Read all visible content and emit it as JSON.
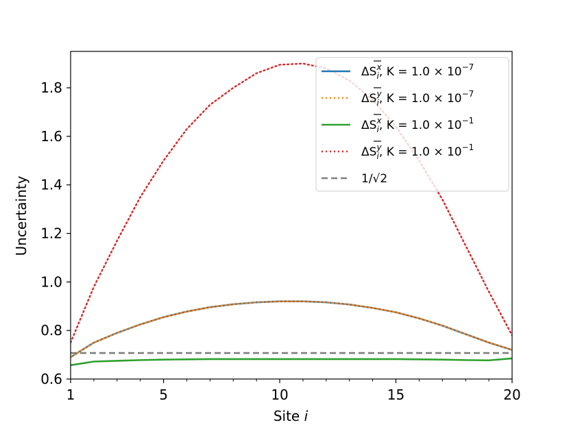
{
  "chart_data": {
    "type": "line",
    "xlabel_main": "Site ",
    "xlabel_var": "i",
    "ylabel": "Uncertainty",
    "xlim": [
      1,
      20
    ],
    "ylim": [
      0.6,
      1.95
    ],
    "xticks": [
      1,
      5,
      10,
      15,
      20
    ],
    "xtick_labels": [
      "1",
      "5",
      "10",
      "15",
      "20"
    ],
    "yticks": [
      0.6,
      0.8,
      1.0,
      1.2,
      1.4,
      1.6,
      1.8
    ],
    "ytick_labels": [
      "0.6",
      "0.8",
      "1.0",
      "1.2",
      "1.4",
      "1.6",
      "1.8"
    ],
    "grid": false,
    "legend_position": "top-right",
    "x": [
      1,
      2,
      3,
      4,
      5,
      6,
      7,
      8,
      9,
      10,
      11,
      12,
      13,
      14,
      15,
      16,
      17,
      18,
      19,
      20
    ],
    "series": [
      {
        "legend": {
          "var": "y",
          "exp": "−1"
        },
        "color": "#d62728",
        "style": "dotted",
        "values": [
          0.75,
          0.98,
          1.17,
          1.35,
          1.5,
          1.63,
          1.73,
          1.8,
          1.86,
          1.895,
          1.9,
          1.88,
          1.83,
          1.75,
          1.64,
          1.5,
          1.34,
          1.15,
          0.96,
          0.78
        ]
      },
      {
        "legend": {
          "var": "x",
          "exp": "−1"
        },
        "color": "#2ca02c",
        "style": "solid",
        "values": [
          0.657,
          0.672,
          0.675,
          0.678,
          0.68,
          0.681,
          0.682,
          0.682,
          0.682,
          0.682,
          0.682,
          0.682,
          0.682,
          0.682,
          0.682,
          0.681,
          0.68,
          0.678,
          0.677,
          0.685
        ]
      },
      {
        "legend": {
          "var": "x",
          "exp": "−7"
        },
        "color": "#1f77b4",
        "style": "solid",
        "values": [
          0.69,
          0.75,
          0.79,
          0.825,
          0.855,
          0.878,
          0.896,
          0.908,
          0.916,
          0.92,
          0.92,
          0.916,
          0.907,
          0.893,
          0.875,
          0.85,
          0.82,
          0.785,
          0.75,
          0.72
        ]
      },
      {
        "legend": {
          "var": "y",
          "exp": "−7"
        },
        "color": "#ff7f0e",
        "style": "dotted",
        "values": [
          0.69,
          0.75,
          0.79,
          0.825,
          0.855,
          0.878,
          0.896,
          0.908,
          0.916,
          0.92,
          0.92,
          0.916,
          0.907,
          0.893,
          0.875,
          0.85,
          0.82,
          0.785,
          0.75,
          0.72
        ]
      },
      {
        "legend_text": "1/√2",
        "color": "#7f7f7f",
        "style": "dashed",
        "values": [
          0.7071,
          0.7071,
          0.7071,
          0.7071,
          0.7071,
          0.7071,
          0.7071,
          0.7071,
          0.7071,
          0.7071,
          0.7071,
          0.7071,
          0.7071,
          0.7071,
          0.7071,
          0.7071,
          0.7071,
          0.7071,
          0.7071,
          0.7071
        ]
      }
    ],
    "legend_order": [
      2,
      3,
      1,
      0,
      4
    ],
    "legend_common": {
      "delta": "Δ",
      "symbol": "S",
      "sub": "i",
      "K_text": ", K = 1.0 × 10"
    }
  }
}
